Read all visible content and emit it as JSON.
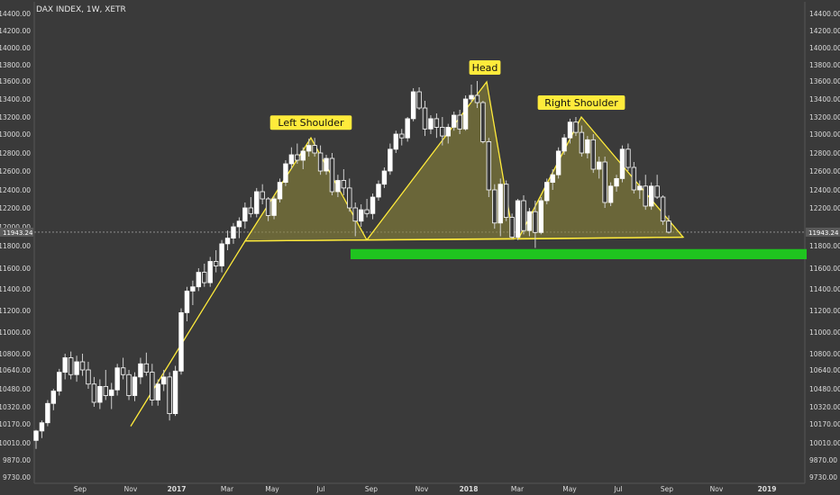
{
  "header": {
    "title": "DAX INDEX, 1W, XETR"
  },
  "price_tag": "11943.24",
  "colors": {
    "background": "#3a3a3a",
    "axis_text": "#dcdcdc",
    "candle_up": "#ffffff",
    "candle_down": "#ffffff",
    "wick": "#cfcfcf",
    "pattern_line": "#ffeb3b",
    "pattern_fill": "#8a8438",
    "support_zone": "#1fc41f",
    "label_bg": "#ffeb3b",
    "label_text": "#111111"
  },
  "chart_data": {
    "type": "candlestick",
    "title": "DAX INDEX, 1W, XETR",
    "x_ticks": [
      "Sep",
      "Nov",
      "2017",
      "Mar",
      "May",
      "Jul",
      "Sep",
      "Nov",
      "2018",
      "Mar",
      "May",
      "Jul",
      "Sep",
      "Nov",
      "2019"
    ],
    "y_ticks_left": [
      "14400.00",
      "14200.00",
      "14000.00",
      "13800.00",
      "13600.00",
      "13400.00",
      "13200.00",
      "13000.00",
      "12800.00",
      "12600.00",
      "12400.00",
      "12200.00",
      "12000.00",
      "11800.00",
      "11600.00",
      "11400.00",
      "11200.00",
      "11000.00",
      "10800.00",
      "10640.00",
      "10480.00",
      "10320.00",
      "10170.00",
      "10010.00",
      "9870.00",
      "9730.00"
    ],
    "y_ticks_right": [
      "14400.00",
      "14200.00",
      "14000.00",
      "13800.00",
      "13600.00",
      "13400.00",
      "13200.00",
      "13000.00",
      "12800.00",
      "12600.00",
      "12400.00",
      "12200.00",
      "11800.00",
      "11600.00",
      "11400.00",
      "11200.00",
      "11000.00",
      "10800.00",
      "10640.00",
      "10480.00",
      "10320.00",
      "10170.00",
      "10010.00",
      "9870.00",
      "9730.00"
    ],
    "ylim": [
      9700,
      14450
    ],
    "candles": [
      [
        10030,
        10120,
        9960,
        10110
      ],
      [
        10110,
        10200,
        10050,
        10180
      ],
      [
        10180,
        10380,
        10150,
        10350
      ],
      [
        10350,
        10480,
        10290,
        10460
      ],
      [
        10460,
        10650,
        10420,
        10620
      ],
      [
        10620,
        10800,
        10560,
        10760
      ],
      [
        10760,
        10820,
        10560,
        10600
      ],
      [
        10600,
        10780,
        10540,
        10720
      ],
      [
        10720,
        10800,
        10590,
        10640
      ],
      [
        10640,
        10720,
        10480,
        10520
      ],
      [
        10520,
        10580,
        10320,
        10360
      ],
      [
        10360,
        10560,
        10300,
        10500
      ],
      [
        10500,
        10640,
        10380,
        10420
      ],
      [
        10420,
        10530,
        10300,
        10470
      ],
      [
        10470,
        10700,
        10420,
        10660
      ],
      [
        10660,
        10760,
        10560,
        10600
      ],
      [
        10600,
        10640,
        10380,
        10420
      ],
      [
        10420,
        10620,
        10370,
        10580
      ],
      [
        10580,
        10760,
        10520,
        10700
      ],
      [
        10700,
        10810,
        10590,
        10620
      ],
      [
        10620,
        10700,
        10330,
        10380
      ],
      [
        10380,
        10560,
        10330,
        10520
      ],
      [
        10520,
        10640,
        10460,
        10580
      ],
      [
        10580,
        10620,
        10200,
        10260
      ],
      [
        10260,
        10680,
        10240,
        10630
      ],
      [
        10630,
        11220,
        10600,
        11180
      ],
      [
        11180,
        11420,
        11100,
        11380
      ],
      [
        11380,
        11480,
        11250,
        11420
      ],
      [
        11420,
        11600,
        11380,
        11560
      ],
      [
        11560,
        11640,
        11420,
        11460
      ],
      [
        11460,
        11700,
        11420,
        11660
      ],
      [
        11660,
        11760,
        11560,
        11620
      ],
      [
        11620,
        11860,
        11560,
        11820
      ],
      [
        11820,
        11960,
        11760,
        11880
      ],
      [
        11880,
        12040,
        11820,
        12000
      ],
      [
        12000,
        12100,
        11880,
        12060
      ],
      [
        12060,
        12260,
        11980,
        12200
      ],
      [
        12200,
        12320,
        12100,
        12140
      ],
      [
        12140,
        12420,
        12100,
        12380
      ],
      [
        12380,
        12460,
        12240,
        12300
      ],
      [
        12300,
        12320,
        12060,
        12120
      ],
      [
        12120,
        12330,
        12080,
        12300
      ],
      [
        12300,
        12520,
        12260,
        12480
      ],
      [
        12480,
        12720,
        12440,
        12680
      ],
      [
        12680,
        12860,
        12620,
        12780
      ],
      [
        12780,
        12900,
        12680,
        12720
      ],
      [
        12720,
        12860,
        12620,
        12820
      ],
      [
        12820,
        12950,
        12760,
        12880
      ],
      [
        12880,
        12960,
        12760,
        12800
      ],
      [
        12800,
        12880,
        12560,
        12600
      ],
      [
        12600,
        12780,
        12560,
        12740
      ],
      [
        12740,
        12800,
        12340,
        12380
      ],
      [
        12380,
        12560,
        12320,
        12500
      ],
      [
        12500,
        12620,
        12340,
        12420
      ],
      [
        12420,
        12520,
        12160,
        12200
      ],
      [
        12200,
        12260,
        11900,
        12060
      ],
      [
        12060,
        12240,
        12000,
        12180
      ],
      [
        12180,
        12300,
        12100,
        12140
      ],
      [
        12140,
        12360,
        12080,
        12320
      ],
      [
        12320,
        12500,
        12280,
        12460
      ],
      [
        12460,
        12640,
        12420,
        12600
      ],
      [
        12600,
        12900,
        12560,
        12840
      ],
      [
        12840,
        13040,
        12800,
        13000
      ],
      [
        13000,
        13060,
        12880,
        12960
      ],
      [
        12960,
        13200,
        12920,
        13180
      ],
      [
        13180,
        13520,
        13150,
        13480
      ],
      [
        13480,
        13530,
        13280,
        13300
      ],
      [
        13300,
        13380,
        12980,
        13060
      ],
      [
        13060,
        13220,
        13000,
        13180
      ],
      [
        13180,
        13240,
        12960,
        13080
      ],
      [
        13080,
        13200,
        12880,
        12980
      ],
      [
        12980,
        13120,
        12900,
        13080
      ],
      [
        13080,
        13260,
        13040,
        13220
      ],
      [
        13220,
        13280,
        13000,
        13060
      ],
      [
        13060,
        13440,
        13040,
        13400
      ],
      [
        13400,
        13560,
        13360,
        13440
      ],
      [
        13440,
        13600,
        13300,
        13360
      ],
      [
        13360,
        13380,
        12900,
        12920
      ],
      [
        12920,
        12960,
        12320,
        12400
      ],
      [
        12400,
        12460,
        11980,
        12040
      ],
      [
        12040,
        12520,
        11900,
        12460
      ],
      [
        12460,
        12500,
        12060,
        12100
      ],
      [
        12100,
        12140,
        11870,
        11890
      ],
      [
        11890,
        12300,
        11860,
        12280
      ],
      [
        12280,
        12340,
        11920,
        11960
      ],
      [
        11960,
        12200,
        11900,
        12160
      ],
      [
        12160,
        12280,
        11780,
        11940
      ],
      [
        11940,
        12320,
        11920,
        12280
      ],
      [
        12280,
        12520,
        12240,
        12480
      ],
      [
        12480,
        12620,
        12400,
        12560
      ],
      [
        12560,
        12860,
        12520,
        12820
      ],
      [
        12820,
        13000,
        12780,
        12960
      ],
      [
        12960,
        13180,
        12900,
        13140
      ],
      [
        13140,
        13200,
        12980,
        13020
      ],
      [
        13020,
        13100,
        12760,
        12800
      ],
      [
        12800,
        12980,
        12740,
        12940
      ],
      [
        12940,
        13000,
        12580,
        12620
      ],
      [
        12620,
        12760,
        12520,
        12700
      ],
      [
        12700,
        12760,
        12200,
        12260
      ],
      [
        12260,
        12480,
        12220,
        12440
      ],
      [
        12440,
        12560,
        12380,
        12520
      ],
      [
        12520,
        12880,
        12480,
        12840
      ],
      [
        12840,
        12900,
        12600,
        12640
      ],
      [
        12640,
        12700,
        12360,
        12400
      ],
      [
        12400,
        12500,
        12300,
        12440
      ],
      [
        12440,
        12560,
        12180,
        12220
      ],
      [
        12220,
        12480,
        12180,
        12440
      ],
      [
        12440,
        12560,
        12300,
        12320
      ],
      [
        12320,
        12340,
        12020,
        12060
      ],
      [
        12060,
        12120,
        11930,
        11943
      ]
    ],
    "annotations": [
      {
        "text": "Left Shoulder"
      },
      {
        "text": "Head"
      },
      {
        "text": "Right Shoulder"
      }
    ],
    "grid": false
  }
}
